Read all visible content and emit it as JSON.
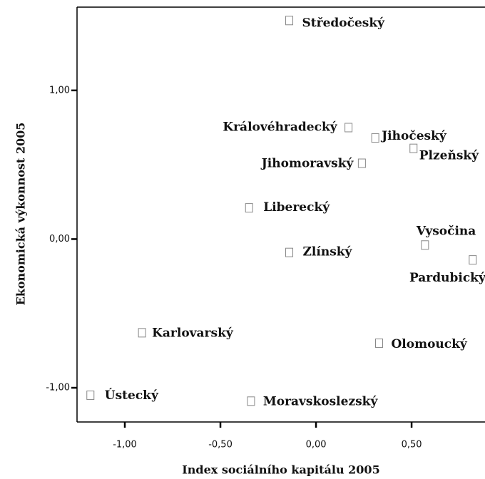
{
  "chart_data": {
    "type": "scatter",
    "x_label": "Index sociálního kapitálu 2005",
    "y_label": "Ekonomická výkonnost 2005",
    "labels": [
      "Středočeský",
      "Královéhradecký",
      "Jihočeský",
      "Plzeňský",
      "Jihomoravský",
      "Liberecký",
      "Vysočina",
      "Pardubický",
      "Zlínský",
      "Karlovarský",
      "Olomoucký",
      "Ústecký",
      "Moravskoslezský"
    ],
    "x": [
      -0.14,
      0.17,
      0.31,
      0.51,
      0.24,
      -0.35,
      0.57,
      0.82,
      -0.14,
      -0.91,
      0.33,
      -1.18,
      -0.34
    ],
    "values": [
      1.47,
      0.75,
      0.68,
      0.61,
      0.51,
      0.21,
      -0.04,
      -0.14,
      -0.09,
      -0.63,
      -0.7,
      -1.05,
      -1.09
    ],
    "color": "#888888",
    "xlim": [
      -1.25,
      0.884
    ],
    "ylim": [
      -1.23,
      1.56
    ],
    "xticks": [
      {
        "value": -1,
        "label": "-1,00"
      },
      {
        "value": -0.5,
        "label": "-0,50"
      },
      {
        "value": 0,
        "label": "0,00"
      },
      {
        "value": 0.5,
        "label": "0,50"
      }
    ],
    "yticks": [
      {
        "value": -1,
        "label": "-1,00"
      },
      {
        "value": 0,
        "label": "0,00"
      },
      {
        "value": 1,
        "label": "1,00"
      }
    ]
  }
}
